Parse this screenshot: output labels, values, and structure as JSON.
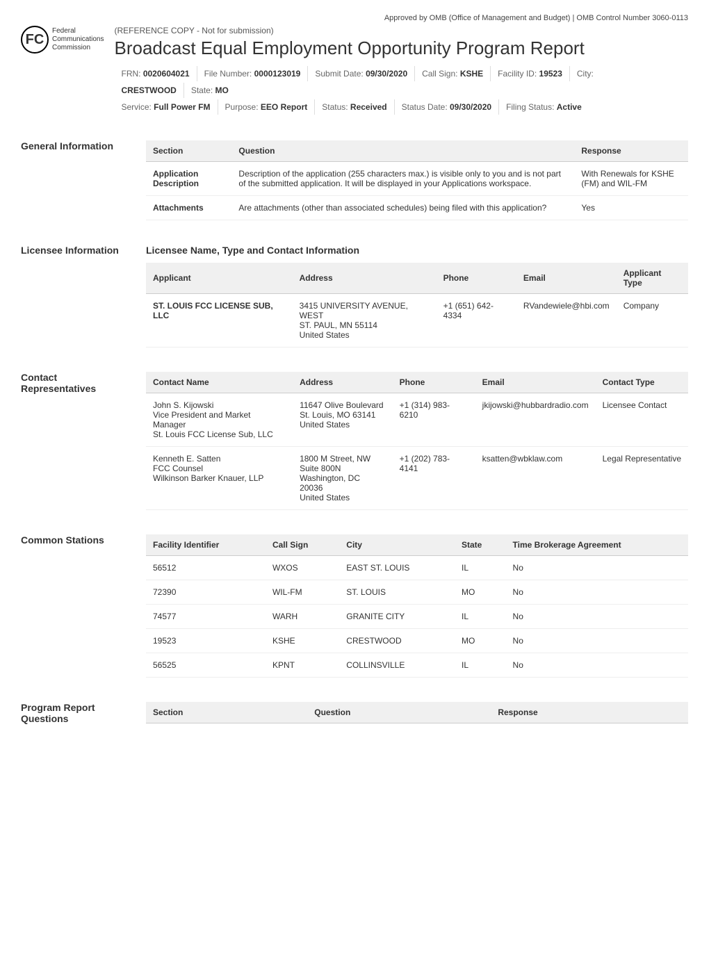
{
  "approval_text": "Approved by OMB (Office of Management and Budget) | OMB Control Number 3060-0113",
  "fcc_logo": {
    "symbol": "FC",
    "text_lines": [
      "Federal",
      "Communications",
      "Commission"
    ]
  },
  "reference_copy": "(REFERENCE COPY - Not for submission)",
  "main_title": "Broadcast Equal Employment Opportunity Program Report",
  "meta_row1": [
    {
      "label": "FRN:",
      "value": "0020604021"
    },
    {
      "label": "File Number:",
      "value": "0000123019"
    },
    {
      "label": "Submit Date:",
      "value": "09/30/2020"
    },
    {
      "label": "Call Sign:",
      "value": "KSHE"
    },
    {
      "label": "Facility ID:",
      "value": "19523"
    },
    {
      "label": "City:",
      "value": ""
    }
  ],
  "meta_row2": [
    {
      "label": "",
      "value": "CRESTWOOD"
    },
    {
      "label": "State:",
      "value": "MO"
    }
  ],
  "meta_row3": [
    {
      "label": "Service:",
      "value": "Full Power FM"
    },
    {
      "label": "Purpose:",
      "value": "EEO Report"
    },
    {
      "label": "Status:",
      "value": "Received"
    },
    {
      "label": "Status Date:",
      "value": "09/30/2020"
    },
    {
      "label": "Filing Status:",
      "value": "Active"
    }
  ],
  "general_info": {
    "section_title": "General Information",
    "columns": [
      "Section",
      "Question",
      "Response"
    ],
    "rows": [
      {
        "section": "Application Description",
        "question": "Description of the application (255 characters max.) is visible only to you and is not part of the submitted application. It will be displayed in your Applications workspace.",
        "response": "With Renewals for KSHE (FM) and WIL-FM"
      },
      {
        "section": "Attachments",
        "question": "Are attachments (other than associated schedules) being filed with this application?",
        "response": "Yes"
      }
    ]
  },
  "licensee_info": {
    "section_title": "Licensee Information",
    "subsection_title": "Licensee Name, Type and Contact Information",
    "columns": [
      "Applicant",
      "Address",
      "Phone",
      "Email",
      "Applicant Type"
    ],
    "rows": [
      {
        "applicant": "ST. LOUIS FCC LICENSE SUB, LLC",
        "address": "3415 UNIVERSITY AVENUE, WEST\nST. PAUL, MN 55114\nUnited States",
        "phone": "+1 (651) 642-4334",
        "email": "RVandewiele@hbi.com",
        "applicant_type": "Company"
      }
    ]
  },
  "contact_reps": {
    "section_title": "Contact Representatives",
    "columns": [
      "Contact Name",
      "Address",
      "Phone",
      "Email",
      "Contact Type"
    ],
    "rows": [
      {
        "contact_name": "John S. Kijowski\nVice President and Market Manager\nSt. Louis FCC License Sub, LLC",
        "address": "11647 Olive Boulevard\nSt. Louis, MO 63141\nUnited States",
        "phone": "+1 (314) 983-6210",
        "email": "jkijowski@hubbardradio.com",
        "contact_type": "Licensee Contact"
      },
      {
        "contact_name": "Kenneth E. Satten\nFCC Counsel\nWilkinson Barker Knauer, LLP",
        "address": "1800 M Street, NW\nSuite 800N\nWashington, DC 20036\nUnited States",
        "phone": "+1 (202) 783-4141",
        "email": "ksatten@wbklaw.com",
        "contact_type": "Legal Representative"
      }
    ]
  },
  "common_stations": {
    "section_title": "Common Stations",
    "columns": [
      "Facility Identifier",
      "Call Sign",
      "City",
      "State",
      "Time Brokerage Agreement"
    ],
    "rows": [
      {
        "facility_id": "56512",
        "call_sign": "WXOS",
        "city": "EAST ST. LOUIS",
        "state": "IL",
        "tba": "No"
      },
      {
        "facility_id": "72390",
        "call_sign": "WIL-FM",
        "city": "ST. LOUIS",
        "state": "MO",
        "tba": "No"
      },
      {
        "facility_id": "74577",
        "call_sign": "WARH",
        "city": "GRANITE CITY",
        "state": "IL",
        "tba": "No"
      },
      {
        "facility_id": "19523",
        "call_sign": "KSHE",
        "city": "CRESTWOOD",
        "state": "MO",
        "tba": "No"
      },
      {
        "facility_id": "56525",
        "call_sign": "KPNT",
        "city": "COLLINSVILLE",
        "state": "IL",
        "tba": "No"
      }
    ]
  },
  "program_report": {
    "section_title": "Program Report Questions",
    "columns": [
      "Section",
      "Question",
      "Response"
    ]
  },
  "colors": {
    "background": "#ffffff",
    "text": "#333333",
    "header_bg": "#f0f0f0",
    "border": "#cccccc",
    "row_border": "#eeeeee",
    "meta_divider": "#dddddd"
  },
  "typography": {
    "base_font": "Arial, sans-serif",
    "base_size": 13,
    "title_size": 26,
    "section_label_size": 14,
    "table_font_size": 12
  }
}
